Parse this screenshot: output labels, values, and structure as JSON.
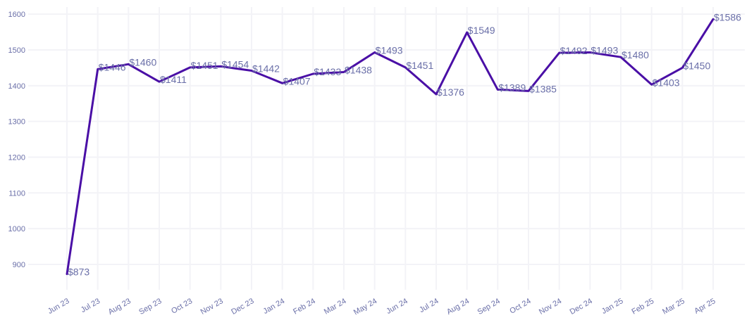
{
  "colors": {
    "line": "#4a0fa6",
    "grid": "#f3f3f7",
    "text": "#6a6fa8"
  },
  "chart_data": {
    "type": "line",
    "title": "",
    "xlabel": "",
    "ylabel": "",
    "categories": [
      "Jun 23",
      "Jul 23",
      "Aug 23",
      "Sep 23",
      "Oct 23",
      "Nov 23",
      "Dec 23",
      "Jan 24",
      "Feb 24",
      "Mar 24",
      "May 24",
      "Jun 24",
      "Jul 24",
      "Aug 24",
      "Sep 24",
      "Oct 24",
      "Nov 24",
      "Dec 24",
      "Jan 25",
      "Feb 25",
      "Mar 25",
      "Apr 25"
    ],
    "values": [
      873,
      1446,
      1460,
      1411,
      1451,
      1454,
      1442,
      1407,
      1433,
      1438,
      1493,
      1451,
      1376,
      1549,
      1389,
      1385,
      1492,
      1493,
      1480,
      1403,
      1450,
      1586
    ],
    "data_labels": [
      "$873",
      "$1446",
      "$1460",
      "$1411",
      "$1451",
      "$1454",
      "$1442",
      "$1407",
      "$1433",
      "$1438",
      "$1493",
      "$1451",
      "$1376",
      "$1549",
      "$1389",
      "$1385",
      "$1492",
      "$1493",
      "$1480",
      "$1403",
      "$1450",
      "$1586"
    ],
    "ylim": [
      833,
      1620
    ],
    "y_ticks": [
      900,
      1000,
      1100,
      1200,
      1300,
      1400,
      1500,
      1600
    ],
    "y_tick_labels": [
      "900",
      "1000",
      "1100",
      "1200",
      "1300",
      "1400",
      "1500",
      "1600"
    ],
    "grid": true,
    "legend": "none"
  }
}
